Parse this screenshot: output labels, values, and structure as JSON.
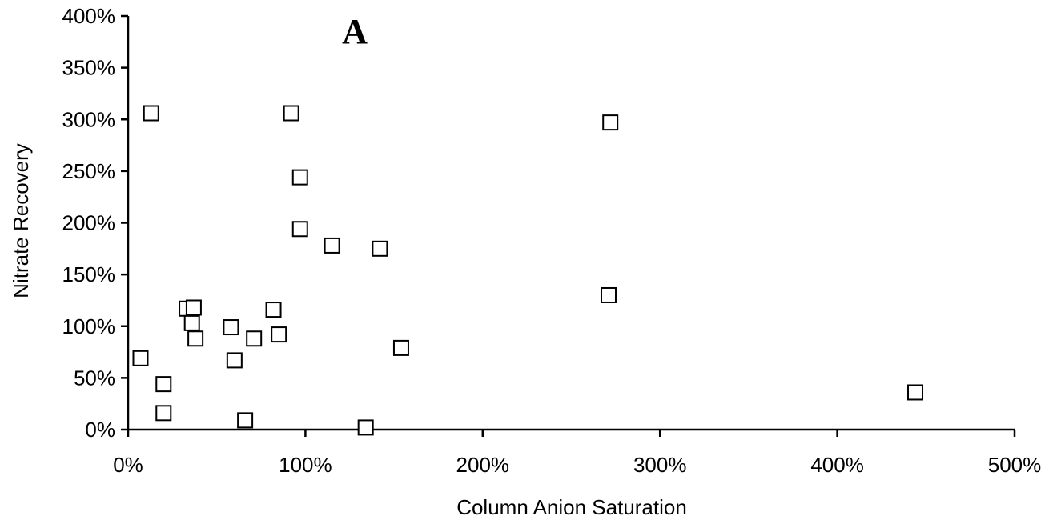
{
  "chart_data": {
    "type": "scatter",
    "panel_label": "A",
    "xlabel": "Column Anion Saturation",
    "ylabel": "Nitrate Recovery",
    "xlim": [
      0,
      5
    ],
    "ylim": [
      0,
      4
    ],
    "x_ticks": [
      0,
      1,
      2,
      3,
      4,
      5
    ],
    "y_ticks": [
      0,
      0.5,
      1,
      1.5,
      2,
      2.5,
      3,
      3.5,
      4
    ],
    "x_tick_labels": [
      "0%",
      "100%",
      "200%",
      "300%",
      "400%",
      "500%"
    ],
    "y_tick_labels": [
      "0%",
      "50%",
      "100%",
      "150%",
      "200%",
      "250%",
      "300%",
      "350%",
      "400%"
    ],
    "marker": "open-square",
    "grid": false,
    "legend": "none",
    "points": [
      {
        "x": 0.13,
        "y": 3.06
      },
      {
        "x": 0.92,
        "y": 3.06
      },
      {
        "x": 2.72,
        "y": 2.97
      },
      {
        "x": 0.97,
        "y": 2.44
      },
      {
        "x": 0.97,
        "y": 1.94
      },
      {
        "x": 1.15,
        "y": 1.78
      },
      {
        "x": 1.42,
        "y": 1.75
      },
      {
        "x": 2.71,
        "y": 1.3
      },
      {
        "x": 0.33,
        "y": 1.17
      },
      {
        "x": 0.37,
        "y": 1.18
      },
      {
        "x": 0.82,
        "y": 1.16
      },
      {
        "x": 0.36,
        "y": 1.03
      },
      {
        "x": 0.58,
        "y": 0.99
      },
      {
        "x": 0.85,
        "y": 0.92
      },
      {
        "x": 0.38,
        "y": 0.88
      },
      {
        "x": 0.71,
        "y": 0.88
      },
      {
        "x": 1.54,
        "y": 0.79
      },
      {
        "x": 0.07,
        "y": 0.69
      },
      {
        "x": 0.6,
        "y": 0.67
      },
      {
        "x": 0.2,
        "y": 0.44
      },
      {
        "x": 4.44,
        "y": 0.36
      },
      {
        "x": 0.2,
        "y": 0.16
      },
      {
        "x": 0.66,
        "y": 0.09
      },
      {
        "x": 1.34,
        "y": 0.02
      }
    ]
  }
}
